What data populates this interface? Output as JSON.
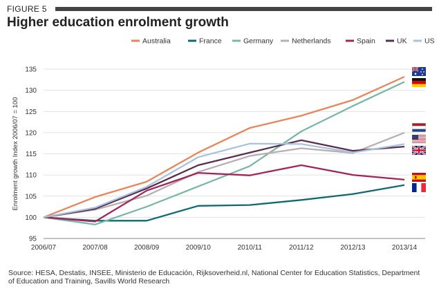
{
  "figure_label": "FIGURE 5",
  "title": "Higher education enrolment growth",
  "source": "Source: HESA, Destatis, INSEE, Ministerio de Educación, Rijksoverheid.nl, National Center for Education Statistics, Department of Education and Training, Savills World Research",
  "chart_data": {
    "type": "line",
    "ylabel": "Enrolment growth Index 2006/07 = 100",
    "xlabel": "",
    "ylim": [
      95,
      135
    ],
    "yticks": [
      95,
      100,
      105,
      110,
      115,
      120,
      125,
      130,
      135
    ],
    "categories": [
      "2006/07",
      "2007/08",
      "2008/09",
      "2009/10",
      "2010/11",
      "2011/12",
      "2012/13",
      "2013/14"
    ],
    "grid": true,
    "legend_position": "top-right",
    "series": [
      {
        "name": "Australia",
        "color": "#e8855a",
        "flag": "australia-flag-icon",
        "values": [
          100,
          104.8,
          108.4,
          115.3,
          121.1,
          124.0,
          127.7,
          133.2
        ]
      },
      {
        "name": "France",
        "color": "#0e6a6f",
        "flag": "france-flag-icon",
        "values": [
          100,
          99.2,
          99.2,
          102.7,
          102.9,
          104.1,
          105.5,
          107.6
        ]
      },
      {
        "name": "Germany",
        "color": "#79b7a6",
        "flag": "germany-flag-icon",
        "values": [
          100,
          98.3,
          102.5,
          107.3,
          112.1,
          120.3,
          126.3,
          132.0
        ]
      },
      {
        "name": "Netherlands",
        "color": "#b8afb3",
        "flag": "netherlands-flag-icon",
        "values": [
          100,
          101.8,
          105.1,
          110.7,
          114.5,
          116.3,
          115.2,
          120.0
        ]
      },
      {
        "name": "Spain",
        "color": "#a3245a",
        "flag": "spain-flag-icon",
        "values": [
          100,
          99.0,
          106.3,
          110.5,
          109.9,
          112.3,
          110.0,
          108.9
        ]
      },
      {
        "name": "UK",
        "color": "#5a2d4f",
        "flag": "uk-flag-icon",
        "values": [
          100,
          102.0,
          106.8,
          112.3,
          115.3,
          118.2,
          115.7,
          116.7
        ]
      },
      {
        "name": "US",
        "color": "#a7c3df",
        "flag": "us-flag-icon",
        "values": [
          100,
          102.3,
          107.2,
          114.2,
          117.4,
          117.3,
          115.3,
          117.3
        ]
      }
    ]
  }
}
